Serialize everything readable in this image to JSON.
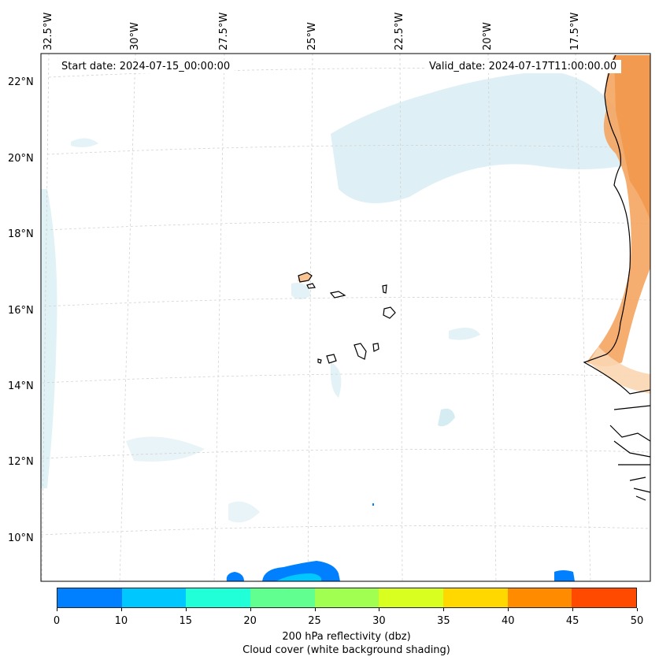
{
  "map": {
    "title_start": "Start date: 2024-07-15_00:00:00",
    "title_valid": "Valid_date: 2024-07-17T11:00:00.00",
    "lon_labels": [
      "32.5°W",
      "30°W",
      "27.5°W",
      "25°W",
      "22.5°W",
      "20°W",
      "17.5°W"
    ],
    "lat_labels": [
      "22°N",
      "20°N",
      "18°N",
      "16°N",
      "14°N",
      "12°N",
      "10°N"
    ]
  },
  "colorbar": {
    "ticks": [
      "0",
      "10",
      "15",
      "20",
      "25",
      "30",
      "35",
      "40",
      "45",
      "50"
    ],
    "colors": [
      "#0080ff",
      "#00c8ff",
      "#20ffd8",
      "#60ff90",
      "#a0ff50",
      "#d8ff20",
      "#ffd800",
      "#ff8c00",
      "#ff4a00"
    ],
    "label_line1": "200 hPa reflectivity (dbz)",
    "label_line2": "Cloud cover (white background shading)"
  }
}
